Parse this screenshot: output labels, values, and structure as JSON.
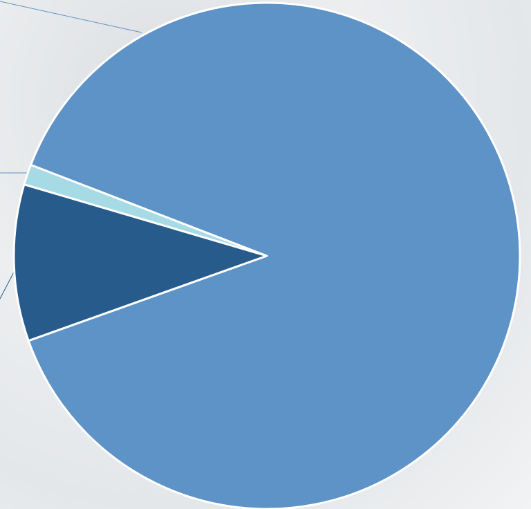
{
  "chart_data": {
    "type": "pie",
    "values": [
      10.0,
      1.3,
      88.7
    ],
    "colors": [
      "#275b8c",
      "#a6dbe6",
      "#5e93c8"
    ]
  }
}
